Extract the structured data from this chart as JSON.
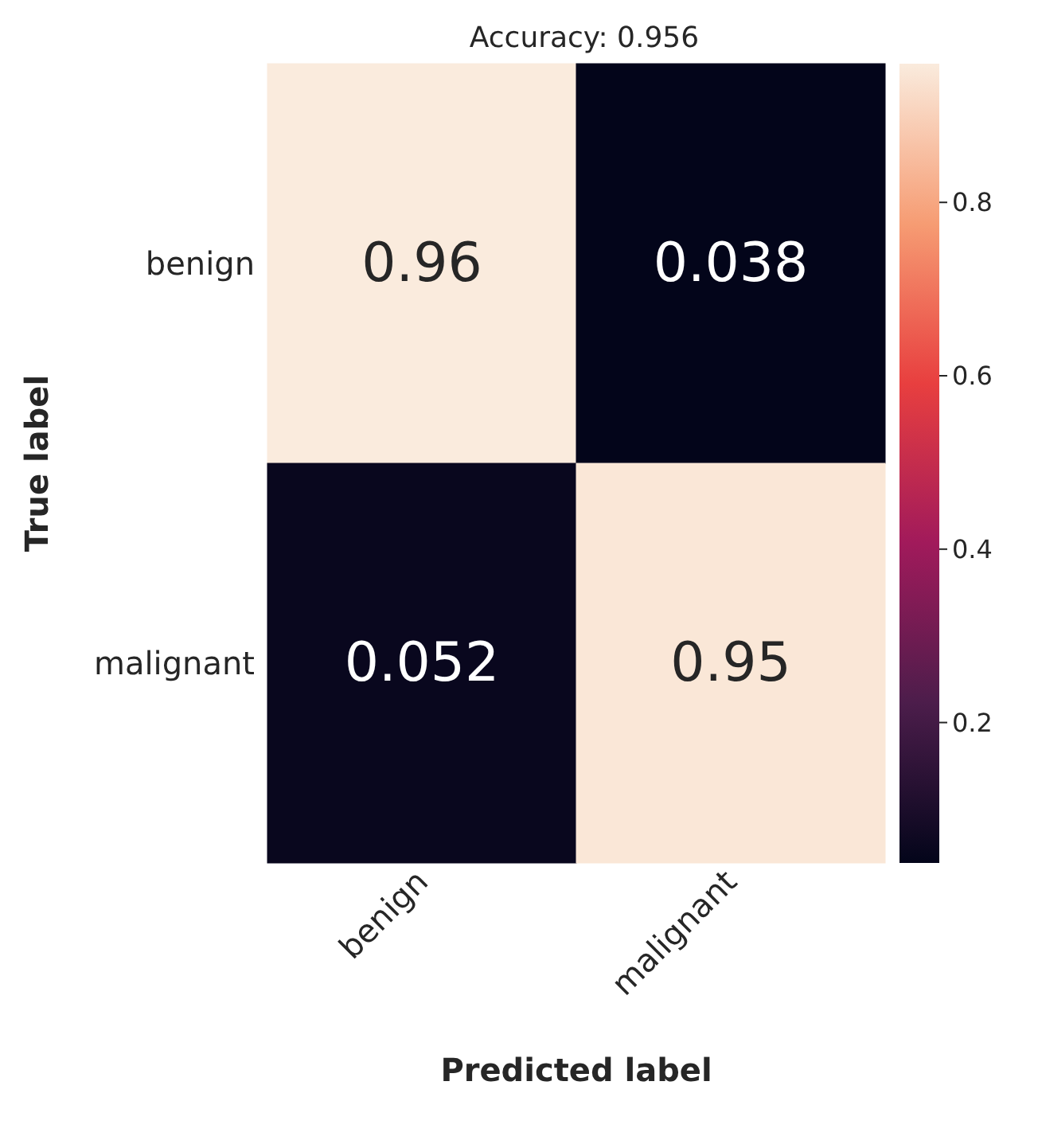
{
  "chart_data": {
    "type": "heatmap",
    "title": "Accuracy: 0.956",
    "xlabel": "Predicted label",
    "ylabel": "True label",
    "categories": [
      "benign",
      "malignant"
    ],
    "y_categories": [
      "benign",
      "malignant"
    ],
    "cells": [
      [
        0.96,
        0.038
      ],
      [
        0.052,
        0.95
      ]
    ],
    "data_labels": true,
    "clim": [
      0.038,
      0.96
    ],
    "cticks": [
      0.2,
      0.4,
      0.6,
      0.8
    ]
  }
}
